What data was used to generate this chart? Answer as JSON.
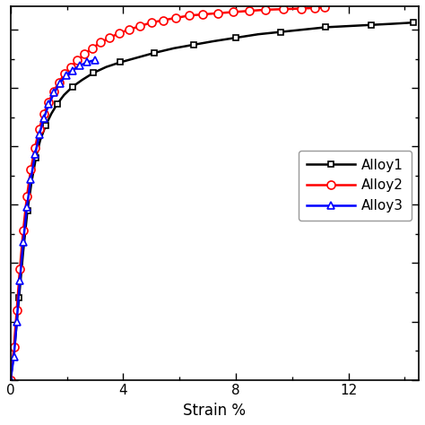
{
  "title": "",
  "xlabel": "Strain %",
  "ylabel": "",
  "xlim": [
    0,
    14.5
  ],
  "ylim": [
    0,
    320
  ],
  "xticks": [
    0,
    4,
    8,
    12
  ],
  "legend_labels": [
    "Alloy1",
    "Alloy2",
    "Alloy3"
  ],
  "background_color": "#ffffff",
  "alloy1_strain": [
    0.0,
    0.15,
    0.3,
    0.45,
    0.6,
    0.75,
    0.9,
    1.05,
    1.25,
    1.45,
    1.65,
    1.9,
    2.2,
    2.55,
    2.95,
    3.4,
    3.9,
    4.5,
    5.1,
    5.8,
    6.5,
    7.2,
    8.0,
    8.8,
    9.6,
    10.4,
    11.2,
    12.0,
    12.8,
    13.6,
    14.3
  ],
  "alloy1_stress": [
    0,
    30,
    70,
    110,
    145,
    170,
    190,
    205,
    218,
    228,
    236,
    244,
    251,
    257,
    263,
    268,
    272,
    276,
    280,
    284,
    287,
    290,
    293,
    296,
    298,
    300,
    302,
    303,
    304,
    305,
    306
  ],
  "alloy2_strain": [
    0.0,
    0.12,
    0.22,
    0.33,
    0.45,
    0.58,
    0.72,
    0.87,
    1.02,
    1.18,
    1.35,
    1.53,
    1.72,
    1.92,
    2.14,
    2.38,
    2.63,
    2.9,
    3.2,
    3.52,
    3.86,
    4.22,
    4.6,
    5.0,
    5.42,
    5.87,
    6.34,
    6.83,
    7.35,
    7.9,
    8.47,
    9.06,
    9.68,
    10.32,
    10.8,
    11.15
  ],
  "alloy2_stress": [
    0,
    28,
    60,
    95,
    128,
    157,
    180,
    199,
    215,
    228,
    238,
    247,
    255,
    262,
    268,
    274,
    279,
    284,
    289,
    293,
    297,
    300,
    303,
    306,
    308,
    310,
    312,
    313,
    314,
    315,
    316,
    317,
    317.5,
    318,
    318.5,
    319
  ],
  "alloy3_strain": [
    0.0,
    0.12,
    0.22,
    0.33,
    0.45,
    0.58,
    0.72,
    0.87,
    1.02,
    1.18,
    1.36,
    1.55,
    1.75,
    1.97,
    2.2,
    2.45,
    2.72,
    3.0
  ],
  "alloy3_stress": [
    0,
    20,
    50,
    85,
    118,
    148,
    172,
    193,
    210,
    224,
    236,
    246,
    254,
    261,
    265,
    269,
    272,
    274
  ]
}
